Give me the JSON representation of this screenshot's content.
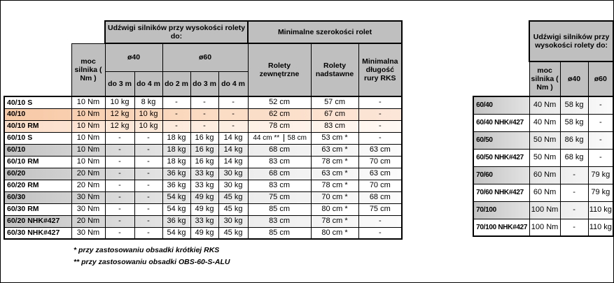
{
  "left_table": {
    "header": {
      "lift_title": "Udźwigi silników przy wysokości rolety do:",
      "min_width_title": "Minimalne szerokości rolet",
      "power": "moc silnika ( Nm )",
      "d40": "ø40",
      "d60": "ø60",
      "sub": [
        "do 3 m",
        "do 4 m",
        "do 2 m",
        "do 3 m",
        "do 4 m"
      ],
      "zew": "Rolety zewnętrzne",
      "nad": "Rolety nadstawne",
      "min": "Minimalna długość rury RKS"
    },
    "rows": [
      {
        "label": "40/10 S",
        "power": "10 Nm",
        "kg": [
          "10 kg",
          "8 kg",
          "-",
          "-",
          "-"
        ],
        "zew": "52 cm",
        "nad": "57 cm",
        "min": "-",
        "shade": "white"
      },
      {
        "label": "40/10",
        "power": "10 Nm",
        "kg": [
          "12 kg",
          "10 kg",
          "-",
          "-",
          "-"
        ],
        "zew": "62 cm",
        "nad": "67 cm",
        "min": "-",
        "shade": "peach"
      },
      {
        "label": "40/10 RM",
        "power": "10 Nm",
        "kg": [
          "12 kg",
          "10 kg",
          "-",
          "-",
          "-"
        ],
        "zew": "78 cm",
        "nad": "83 cm",
        "min": "-",
        "shade": "peach-light"
      },
      {
        "label": "60/10 S",
        "power": "10 Nm",
        "kg": [
          "-",
          "-",
          "18 kg",
          "16 kg",
          "14 kg"
        ],
        "zew": "44 cm **|58 cm",
        "nad": "53 cm *",
        "min": "-",
        "shade": "white"
      },
      {
        "label": "60/10",
        "power": "10 Nm",
        "kg": [
          "-",
          "-",
          "18 kg",
          "16 kg",
          "14 kg"
        ],
        "zew": "68 cm",
        "nad": "63 cm *",
        "min": "63 cm",
        "shade": "gray"
      },
      {
        "label": "60/10 RM",
        "power": "10 Nm",
        "kg": [
          "-",
          "-",
          "18 kg",
          "16 kg",
          "14 kg"
        ],
        "zew": "83 cm",
        "nad": "78 cm *",
        "min": "70 cm",
        "shade": "white"
      },
      {
        "label": "60/20",
        "power": "20 Nm",
        "kg": [
          "-",
          "-",
          "36 kg",
          "33 kg",
          "30 kg"
        ],
        "zew": "68 cm",
        "nad": "63 cm *",
        "min": "63 cm",
        "shade": "gray"
      },
      {
        "label": "60/20 RM",
        "power": "20 Nm",
        "kg": [
          "-",
          "-",
          "36 kg",
          "33 kg",
          "30 kg"
        ],
        "zew": "83 cm",
        "nad": "78 cm *",
        "min": "70 cm",
        "shade": "white"
      },
      {
        "label": "60/30",
        "power": "30 Nm",
        "kg": [
          "-",
          "-",
          "54 kg",
          "49 kg",
          "45 kg"
        ],
        "zew": "75 cm",
        "nad": "70 cm *",
        "min": "68 cm",
        "shade": "gray"
      },
      {
        "label": "60/30 RM",
        "power": "30 Nm",
        "kg": [
          "-",
          "-",
          "54 kg",
          "49 kg",
          "45 kg"
        ],
        "zew": "85 cm",
        "nad": "80 cm *",
        "min": "75 cm",
        "shade": "white"
      },
      {
        "label": "60/20 NHK#427",
        "power": "20 Nm",
        "kg": [
          "-",
          "-",
          "36 kg",
          "33 kg",
          "30 kg"
        ],
        "zew": "83 cm",
        "nad": "78 cm *",
        "min": "-",
        "shade": "gray"
      },
      {
        "label": "60/30 NHK#427",
        "power": "30 Nm",
        "kg": [
          "-",
          "-",
          "54 kg",
          "49 kg",
          "45 kg"
        ],
        "zew": "85 cm",
        "nad": "80 cm *",
        "min": "-",
        "shade": "white"
      }
    ],
    "footnotes": [
      "* przy zastosowaniu obsadki krótkiej RKS",
      "** przy zastosowaniu obsadki OBS-60-S-ALU"
    ]
  },
  "right_table": {
    "header": {
      "lift_title": "Udźwigi silników przy wysokości rolety do:",
      "power": "moc silnika ( Nm )",
      "d40": "ø40",
      "d60": "ø60"
    },
    "rows": [
      {
        "label": "60/40",
        "power": "40 Nm",
        "d40": "58 kg",
        "d60": "-",
        "shade": "gray"
      },
      {
        "label": "60/40 NHK#427",
        "power": "40 Nm",
        "d40": "58 kg",
        "d60": "-",
        "shade": "white"
      },
      {
        "label": "60/50",
        "power": "50 Nm",
        "d40": "86 kg",
        "d60": "-",
        "shade": "gray"
      },
      {
        "label": "60/50 NHK#427",
        "power": "50 Nm",
        "d40": "68 kg",
        "d60": "-",
        "shade": "white"
      },
      {
        "label": "70/60",
        "power": "60 Nm",
        "d40": "-",
        "d60": "79 kg",
        "shade": "gray"
      },
      {
        "label": "70/60 NHK#427",
        "power": "60 Nm",
        "d40": "-",
        "d60": "79 kg",
        "shade": "white"
      },
      {
        "label": "70/100",
        "power": "100 Nm",
        "d40": "-",
        "d60": "110 kg",
        "shade": "gray"
      },
      {
        "label": "70/100 NHK#427",
        "power": "100 Nm",
        "d40": "-",
        "d60": "110 kg",
        "shade": "white"
      }
    ]
  },
  "colors": {
    "header_bg": "#bfbfbf",
    "highlight_peach": "#f7c9a6",
    "row_gray": "#c3c3c3",
    "border": "#000000"
  }
}
